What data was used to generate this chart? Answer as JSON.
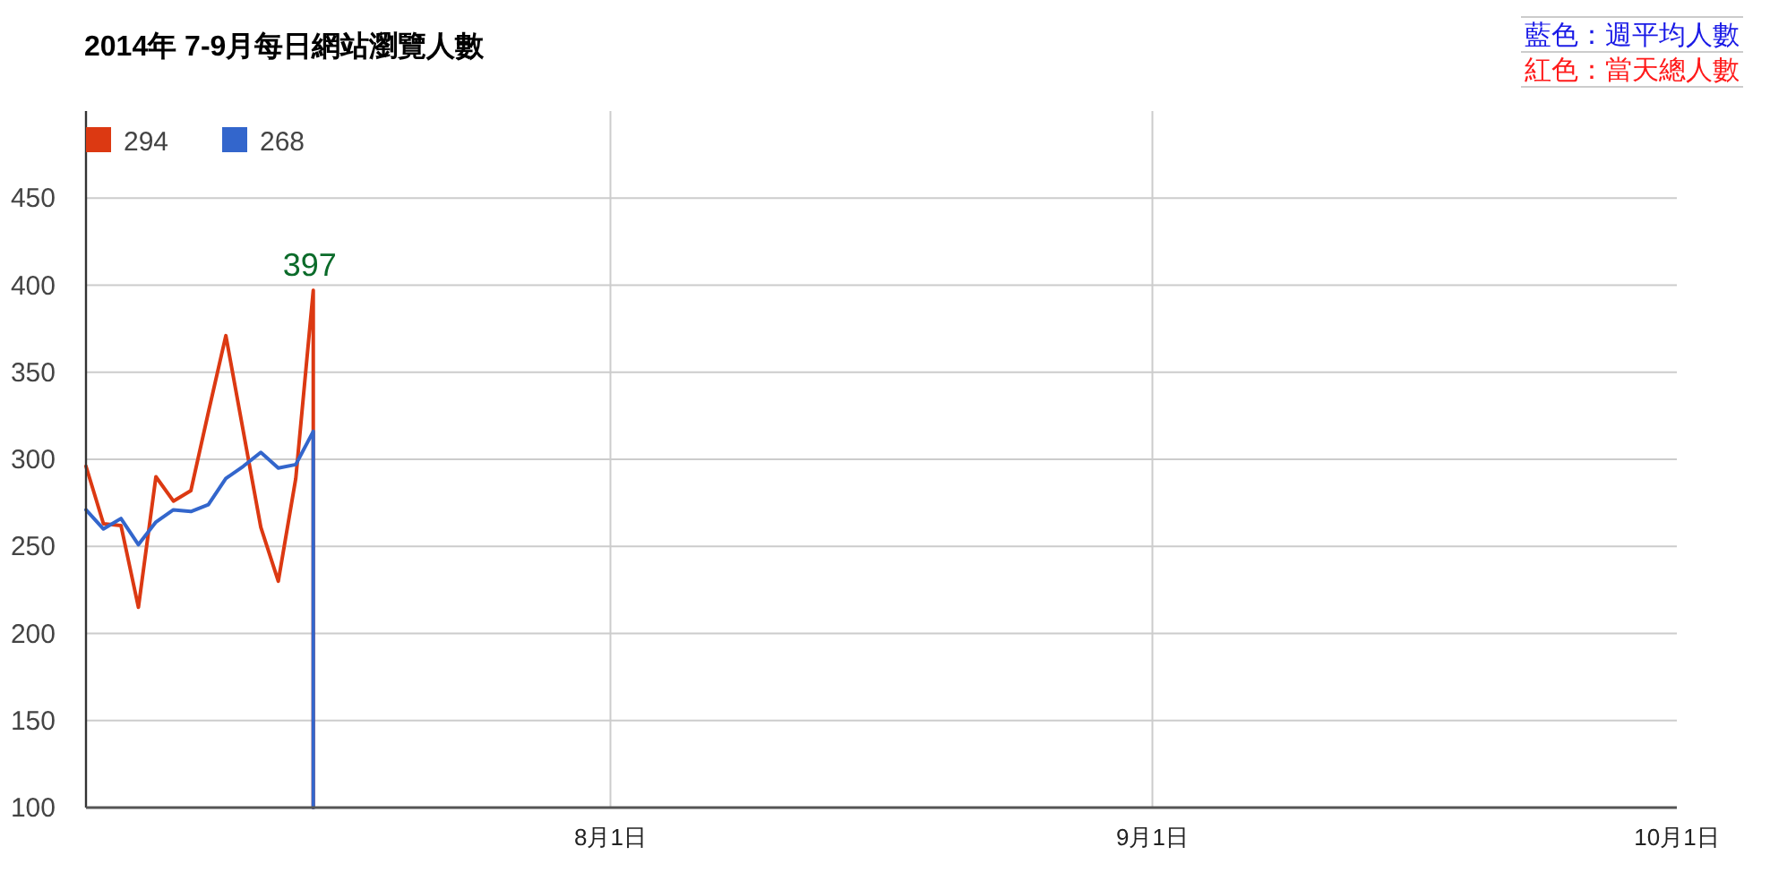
{
  "chart_data": {
    "type": "line",
    "title": "2014年 7-9月每日網站瀏覽人數",
    "annotations": [
      "藍色：週平均人數",
      "紅色：當天總人數",
      {
        "text": "397",
        "x": "2014-07-15",
        "y": 397
      }
    ],
    "x": [
      "2014-07-02",
      "2014-07-03",
      "2014-07-04",
      "2014-07-05",
      "2014-07-06",
      "2014-07-07",
      "2014-07-08",
      "2014-07-09",
      "2014-07-10",
      "2014-07-11",
      "2014-07-12",
      "2014-07-13",
      "2014-07-14",
      "2014-07-15",
      "2014-07-15"
    ],
    "series": [
      {
        "name": "294",
        "color": "#dc3912",
        "values": [
          296,
          263,
          262,
          215,
          290,
          276,
          282,
          327,
          371,
          316,
          261,
          230,
          289,
          397,
          100
        ]
      },
      {
        "name": "268",
        "color": "#3366cc",
        "values": [
          271,
          260,
          266,
          251,
          264,
          271,
          270,
          274,
          289,
          296,
          304,
          295,
          297,
          316,
          100
        ]
      }
    ],
    "xlim": [
      "2014-07-02",
      "2014-10-01"
    ],
    "xticks": [
      {
        "value": "2014-08-01",
        "label": "8月1日"
      },
      {
        "value": "2014-09-01",
        "label": "9月1日"
      },
      {
        "value": "2014-10-01",
        "label": "10月1日"
      }
    ],
    "ylim": [
      100,
      500
    ],
    "yticks": [
      100,
      150,
      200,
      250,
      300,
      350,
      400,
      450
    ],
    "grid": true,
    "legend": "top left",
    "line_style": "solid"
  }
}
